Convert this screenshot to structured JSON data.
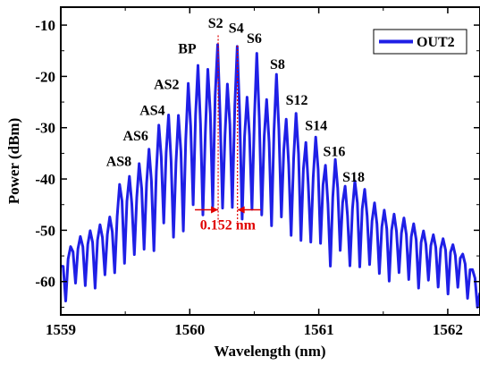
{
  "chart_data": {
    "type": "line",
    "xlabel": "Wavelength (nm)",
    "ylabel": "Power (dBm)",
    "xlim": [
      1559.0,
      1562.25
    ],
    "ylim": [
      -66.5,
      -6.5
    ],
    "xticks": [
      1559,
      1560,
      1561,
      1562
    ],
    "yticks": [
      -10,
      -20,
      -30,
      -40,
      -50,
      -60
    ],
    "grid": false,
    "legend_position": "top-right",
    "series": [
      {
        "name": "OUT2",
        "color": "#1f1fe6",
        "envelope_peaks": [
          [
            1559.0,
            -57
          ],
          [
            1559.1,
            -52
          ],
          [
            1559.2,
            -50.5
          ],
          [
            1559.3,
            -49
          ],
          [
            1559.4,
            -47
          ],
          [
            1559.48,
            -38.5
          ],
          [
            1559.56,
            -40
          ],
          [
            1559.64,
            -35
          ],
          [
            1559.72,
            -33.5
          ],
          [
            1559.8,
            -25.5
          ],
          [
            1559.88,
            -30
          ],
          [
            1559.96,
            -24
          ],
          [
            1560.04,
            -16.5
          ],
          [
            1560.12,
            -21
          ],
          [
            1560.2,
            -11.5
          ],
          [
            1560.28,
            -23
          ],
          [
            1560.36,
            -13
          ],
          [
            1560.44,
            -24.5
          ],
          [
            1560.52,
            -15.5
          ],
          [
            1560.6,
            -25
          ],
          [
            1560.68,
            -19
          ],
          [
            1560.76,
            -30
          ],
          [
            1560.84,
            -26.5
          ],
          [
            1560.92,
            -35
          ],
          [
            1561.0,
            -30.5
          ],
          [
            1561.08,
            -41
          ],
          [
            1561.14,
            -35
          ],
          [
            1561.22,
            -43
          ],
          [
            1561.3,
            -39.5
          ],
          [
            1561.4,
            -44
          ],
          [
            1561.5,
            -46
          ],
          [
            1561.6,
            -47
          ],
          [
            1561.7,
            -48
          ],
          [
            1561.8,
            -50
          ],
          [
            1561.9,
            -51
          ],
          [
            1562.0,
            -52
          ],
          [
            1562.1,
            -54
          ],
          [
            1562.2,
            -58
          ],
          [
            1562.25,
            -63
          ]
        ],
        "floor_level": -60,
        "mode_spacing_nm": 0.076
      }
    ],
    "annotations": [
      {
        "text": "AS8",
        "x": 1559.45,
        "y": -37.5
      },
      {
        "text": "AS6",
        "x": 1559.58,
        "y": -32.5
      },
      {
        "text": "AS4",
        "x": 1559.71,
        "y": -27.5
      },
      {
        "text": "AS2",
        "x": 1559.82,
        "y": -22.5
      },
      {
        "text": "BP",
        "x": 1559.98,
        "y": -15.5
      },
      {
        "text": "S2",
        "x": 1560.2,
        "y": -10.5
      },
      {
        "text": "S4",
        "x": 1560.36,
        "y": -11.5
      },
      {
        "text": "S6",
        "x": 1560.5,
        "y": -13.5
      },
      {
        "text": "S8",
        "x": 1560.68,
        "y": -18.5
      },
      {
        "text": "S12",
        "x": 1560.83,
        "y": -25.5
      },
      {
        "text": "S14",
        "x": 1560.98,
        "y": -30.5
      },
      {
        "text": "S16",
        "x": 1561.12,
        "y": -35.5
      },
      {
        "text": "S18",
        "x": 1561.27,
        "y": -40.5
      }
    ],
    "spacing_annotation": {
      "text": "0.152 nm",
      "x_left": 1560.22,
      "x_right": 1560.37,
      "y": -46,
      "color": "#e00000"
    }
  }
}
